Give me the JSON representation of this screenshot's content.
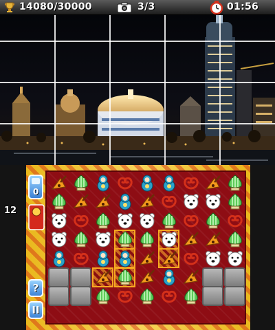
{
  "hud": {
    "score": "14080/30000",
    "photos": "3/3",
    "timer": "01:56"
  },
  "side": {
    "moves": "0",
    "goal": "12",
    "help": "?",
    "pause": "II"
  },
  "board": {
    "cols": 9,
    "rows": 8,
    "cells": [
      [
        "balalaika",
        "dome",
        "matryoshka",
        "pretzel",
        "matryoshka",
        "matryoshka",
        "pretzel",
        "balalaika",
        "dome"
      ],
      [
        "dome",
        "balalaika",
        "balalaika",
        "matryoshka",
        "balalaika",
        "pretzel",
        "bear",
        "bear",
        "dome"
      ],
      [
        "bear",
        "pretzel",
        "dome",
        "bear",
        "bear",
        "dome",
        "pretzel",
        "dome",
        "pretzel"
      ],
      [
        "bear",
        "dome",
        "bear",
        "dome",
        "dome",
        "bear",
        "balalaika",
        "balalaika",
        "dome"
      ],
      [
        "matryoshka",
        "pretzel",
        "matryoshka",
        "matryoshka",
        "balalaika",
        "balalaika",
        "pretzel",
        "bear",
        "bear"
      ],
      [
        "stone",
        "stone",
        "balalaika",
        "dome",
        "balalaika",
        "matryoshka",
        "balalaika",
        "stone",
        "stone"
      ],
      [
        "stone",
        "stone",
        "dome",
        "pretzel",
        "dome",
        "pretzel",
        "dome",
        "stone",
        "stone"
      ],
      [
        "",
        "",
        "",
        "",
        "",
        "",
        "",
        "",
        ""
      ]
    ],
    "selected": [
      [
        3,
        3
      ],
      [
        3,
        5
      ],
      [
        4,
        3
      ],
      [
        4,
        5
      ],
      [
        5,
        2
      ],
      [
        5,
        3
      ]
    ]
  },
  "colors": {
    "board": "#8e0d14",
    "frame": "#e9b81d",
    "side_button": "#3d83d6",
    "selection": "#f6a821"
  }
}
